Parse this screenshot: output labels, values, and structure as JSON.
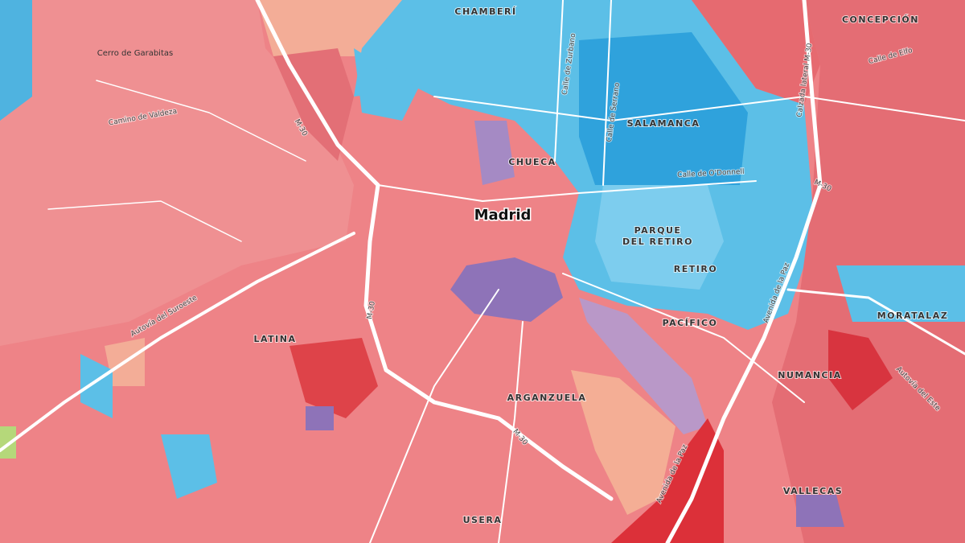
{
  "map": {
    "city": "Madrid",
    "districts": [
      "CHAMBERÍ",
      "CONCEPCIÓN",
      "SALAMANCA",
      "CHUECA",
      "RETIRO",
      "LATINA",
      "PACÍFICO",
      "MORATALAZ",
      "NUMANCIA",
      "ARGANZUELA",
      "VALLECAS",
      "USERA"
    ],
    "park": [
      "PARQUE",
      "DEL RETIRO"
    ],
    "places": [
      "Cerro de Garabitas",
      "Camino de Valdeza"
    ],
    "roads": [
      "M-30",
      "M-30",
      "M-30",
      "M-30",
      "Calle de Zurbano",
      "Calle de Serrano",
      "Calle de Elfo",
      "Calzada lateral M-30",
      "Calle de O'Donnell",
      "Autovía del Suroeste",
      "Avenida de la Paz",
      "Avenida de la Paz",
      "Autovía del Este"
    ]
  }
}
